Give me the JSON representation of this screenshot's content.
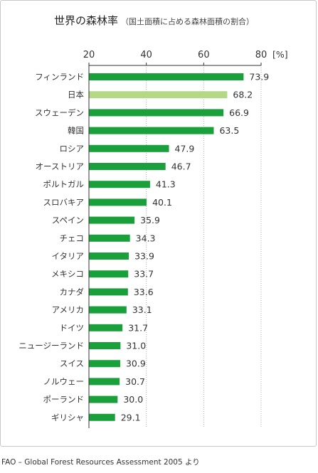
{
  "title": "世界の森林率",
  "subtitle": "（国土面積に占める森林面積の割合）",
  "source": "FAO – Global Forest Resources Assessment 2005 より",
  "colors": {
    "bar": "#1aa03a",
    "highlight": "#b5d886",
    "grid": "#b0b0b0",
    "axis": "#333333"
  },
  "chart_data": {
    "type": "bar",
    "orientation": "horizontal",
    "title": "世界の森林率",
    "subtitle": "（国土面積に占める森林面積の割合）",
    "unit": "[%]",
    "xlim": [
      20,
      80
    ],
    "ticks": [
      20,
      40,
      60,
      80
    ],
    "grid": true,
    "highlight_category": "日本",
    "categories": [
      "フィンランド",
      "日本",
      "スウェーデン",
      "韓国",
      "ロシア",
      "オーストリア",
      "ポルトガル",
      "スロバキア",
      "スペイン",
      "チェコ",
      "イタリア",
      "メキシコ",
      "カナダ",
      "アメリカ",
      "ドイツ",
      "ニュージーランド",
      "スイス",
      "ノルウェー",
      "ポーランド",
      "ギリシャ"
    ],
    "values": [
      73.9,
      68.2,
      66.9,
      63.5,
      47.9,
      46.7,
      41.3,
      40.1,
      35.9,
      34.3,
      33.9,
      33.7,
      33.6,
      33.1,
      31.7,
      31.0,
      30.9,
      30.7,
      30.0,
      29.1
    ],
    "value_labels": [
      "73.9",
      "68.2",
      "66.9",
      "63.5",
      "47.9",
      "46.7",
      "41.3",
      "40.1",
      "35.9",
      "34.3",
      "33.9",
      "33.7",
      "33.6",
      "33.1",
      "31.7",
      "31.0",
      "30.9",
      "30.7",
      "30.0",
      "29.1"
    ]
  }
}
